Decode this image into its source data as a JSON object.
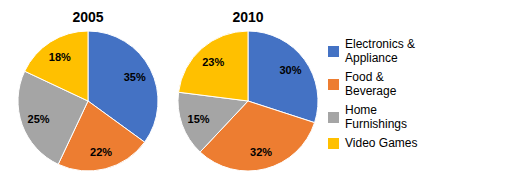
{
  "chart_data": [
    {
      "type": "pie",
      "title": "2005",
      "categories": [
        "Electronics &\nAppliance",
        "Food &\nBeverage",
        "Home\nFurnishings",
        "Video Games"
      ],
      "values": [
        35,
        22,
        25,
        18
      ],
      "value_labels": [
        "35%",
        "22%",
        "25%",
        "18%"
      ],
      "colors": [
        "#4472C4",
        "#ED7D31",
        "#A5A5A5",
        "#FFC000"
      ],
      "data_labels": true
    },
    {
      "type": "pie",
      "title": "2010",
      "categories": [
        "Electronics &\nAppliance",
        "Food &\nBeverage",
        "Home\nFurnishings",
        "Video Games"
      ],
      "values": [
        30,
        32,
        15,
        23
      ],
      "value_labels": [
        "30%",
        "32%",
        "15%",
        "23%"
      ],
      "colors": [
        "#4472C4",
        "#ED7D31",
        "#A5A5A5",
        "#FFC000"
      ],
      "data_labels": true,
      "legend": "right"
    }
  ]
}
